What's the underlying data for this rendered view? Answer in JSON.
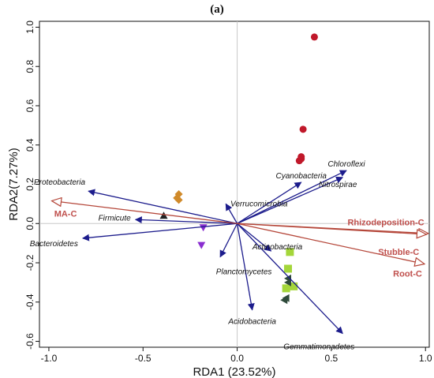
{
  "panel_label": "(a)",
  "colors": {
    "species_arrow": "#1c1c8c",
    "env_arrow": "#b5473a",
    "env_label": "#c0504d",
    "zero_line": "#c8c8c8"
  },
  "chart_data": {
    "type": "scatter",
    "title": "",
    "xlabel": "RDA1 (23.52%)",
    "ylabel": "RDA2(7.27%)",
    "xlim": [
      -1.05,
      1.02
    ],
    "ylim": [
      -0.63,
      1.03
    ],
    "x_ticks": [
      -1.0,
      -0.5,
      0.0,
      0.5,
      1.0
    ],
    "x_tick_labels": [
      "-1.0",
      "-0.5",
      "0.0",
      "0.5",
      "1.0"
    ],
    "y_ticks": [
      -0.6,
      -0.4,
      -0.2,
      0.0,
      0.2,
      0.4,
      0.6,
      0.8,
      1.0
    ],
    "y_tick_labels": [
      "-0.6",
      "-0.4",
      "-0.2",
      "0.0",
      "0.2",
      "0.4",
      "0.6",
      "0.8",
      "1.0"
    ],
    "grid": false,
    "species_vectors": [
      {
        "name": "Proteobacteria",
        "x": -0.79,
        "y": 0.165
      },
      {
        "name": "Firmicute",
        "x": -0.54,
        "y": 0.02
      },
      {
        "name": "Bacteroidetes",
        "x": -0.82,
        "y": -0.075
      },
      {
        "name": "Verrucomicrobia",
        "x": -0.06,
        "y": 0.1
      },
      {
        "name": "Planctomycetes",
        "x": -0.09,
        "y": -0.17
      },
      {
        "name": "Cyanobacteria",
        "x": 0.34,
        "y": 0.21
      },
      {
        "name": "Chloroflexi",
        "x": 0.58,
        "y": 0.27
      },
      {
        "name": "Nitrospirae",
        "x": 0.56,
        "y": 0.235
      },
      {
        "name": "Actinobacteria",
        "x": 0.18,
        "y": -0.14
      },
      {
        "name": "Acidobacteria",
        "x": 0.08,
        "y": -0.44
      },
      {
        "name": "Gemmatimonadetes",
        "x": 0.56,
        "y": -0.56
      }
    ],
    "env_vectors": [
      {
        "name": "MA-C",
        "x": -0.98,
        "y": 0.115
      },
      {
        "name": "Rhizodeposition-C",
        "x": 1.01,
        "y": -0.05
      },
      {
        "name": "Stubble-C",
        "x": 1.0,
        "y": -0.055
      },
      {
        "name": "Root-C",
        "x": 0.99,
        "y": -0.205
      }
    ],
    "sample_groups": [
      {
        "marker": "circle",
        "color": "#c0182a",
        "points": [
          [
            0.41,
            0.95
          ],
          [
            0.35,
            0.48
          ],
          [
            0.34,
            0.34
          ],
          [
            0.34,
            0.33
          ],
          [
            0.33,
            0.32
          ]
        ]
      },
      {
        "marker": "diamond",
        "color": "#d08a2a",
        "points": [
          [
            -0.31,
            0.15
          ],
          [
            -0.32,
            0.13
          ],
          [
            -0.31,
            0.12
          ]
        ]
      },
      {
        "marker": "triangle-up",
        "color": "#222222",
        "points": [
          [
            -0.39,
            0.04
          ]
        ]
      },
      {
        "marker": "triangle-down",
        "color": "#8a2ed0",
        "points": [
          [
            -0.18,
            -0.02
          ],
          [
            -0.19,
            -0.11
          ]
        ]
      },
      {
        "marker": "square",
        "color": "#a4d63a",
        "points": [
          [
            0.28,
            -0.145
          ],
          [
            0.27,
            -0.23
          ],
          [
            0.3,
            -0.32
          ],
          [
            0.26,
            -0.33
          ]
        ]
      },
      {
        "marker": "triangle-left",
        "color": "#2e4a3a",
        "points": [
          [
            0.27,
            -0.28
          ],
          [
            0.27,
            -0.3
          ],
          [
            0.26,
            -0.38
          ],
          [
            0.25,
            -0.39
          ]
        ]
      }
    ]
  }
}
